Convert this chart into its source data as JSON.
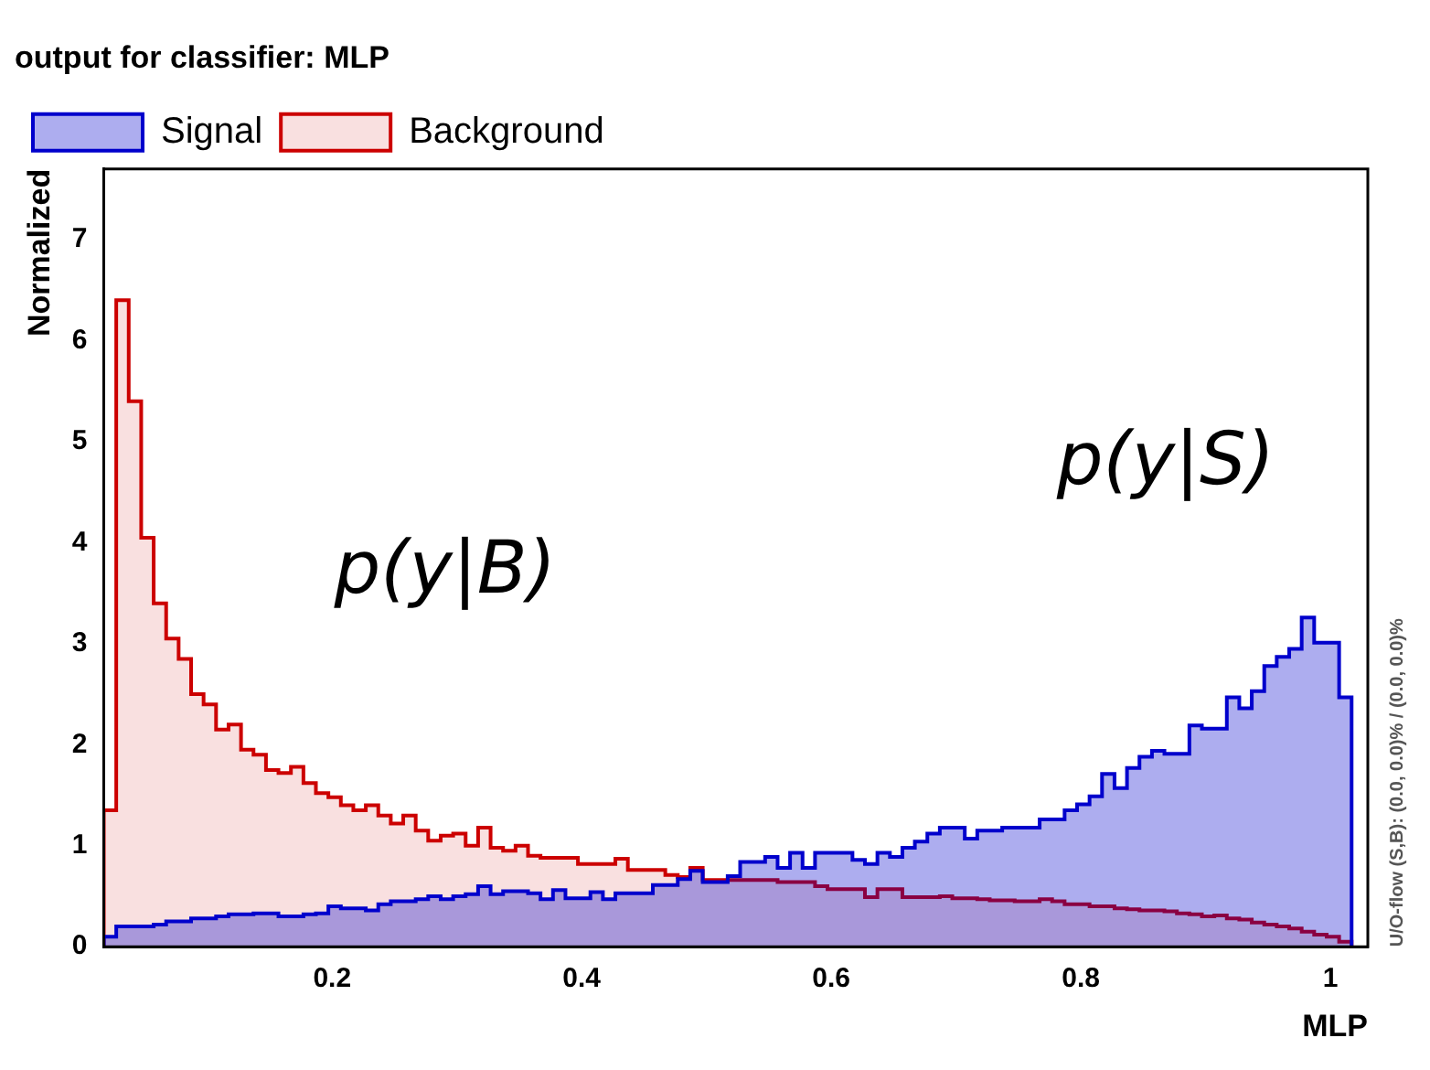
{
  "chart_data": {
    "type": "histogram",
    "title": "output for classifier: MLP",
    "xlabel": "MLP",
    "ylabel": "Normalized",
    "bins": [
      0.017,
      0.027,
      0.037,
      0.047,
      0.057,
      0.067,
      0.077,
      0.087,
      0.097,
      0.107,
      0.117,
      0.127,
      0.137,
      0.147,
      0.157,
      0.167,
      0.177,
      0.187,
      0.197,
      0.207,
      0.217,
      0.227,
      0.237,
      0.247,
      0.257,
      0.267,
      0.277,
      0.287,
      0.297,
      0.307,
      0.317,
      0.327,
      0.337,
      0.347,
      0.357,
      0.367,
      0.377,
      0.387,
      0.397,
      0.407,
      0.417,
      0.427,
      0.437,
      0.447,
      0.457,
      0.467,
      0.477,
      0.487,
      0.497,
      0.507,
      0.517,
      0.527,
      0.537,
      0.547,
      0.557,
      0.567,
      0.577,
      0.587,
      0.597,
      0.607,
      0.617,
      0.627,
      0.637,
      0.647,
      0.657,
      0.667,
      0.677,
      0.687,
      0.697,
      0.707,
      0.717,
      0.727,
      0.737,
      0.747,
      0.757,
      0.767,
      0.777,
      0.787,
      0.797,
      0.807,
      0.817,
      0.827,
      0.837,
      0.847,
      0.857,
      0.867,
      0.877,
      0.887,
      0.897,
      0.907,
      0.917,
      0.927,
      0.937,
      0.947,
      0.957,
      0.967,
      0.977,
      0.987,
      0.997,
      1.007,
      1.017
    ],
    "series": [
      {
        "name": "Signal",
        "color": "#0000cc",
        "values": [
          0.1,
          0.2,
          0.2,
          0.2,
          0.22,
          0.25,
          0.25,
          0.28,
          0.28,
          0.3,
          0.32,
          0.32,
          0.33,
          0.33,
          0.3,
          0.3,
          0.32,
          0.33,
          0.4,
          0.38,
          0.38,
          0.36,
          0.42,
          0.45,
          0.45,
          0.47,
          0.5,
          0.47,
          0.5,
          0.52,
          0.6,
          0.52,
          0.55,
          0.55,
          0.53,
          0.47,
          0.56,
          0.48,
          0.48,
          0.54,
          0.47,
          0.53,
          0.53,
          0.53,
          0.61,
          0.61,
          0.67,
          0.75,
          0.64,
          0.64,
          0.7,
          0.84,
          0.84,
          0.89,
          0.78,
          0.93,
          0.78,
          0.93,
          0.93,
          0.93,
          0.86,
          0.82,
          0.93,
          0.89,
          0.98,
          1.04,
          1.12,
          1.18,
          1.18,
          1.07,
          1.15,
          1.15,
          1.18,
          1.18,
          1.18,
          1.26,
          1.26,
          1.35,
          1.41,
          1.49,
          1.71,
          1.57,
          1.77,
          1.88,
          1.94,
          1.91,
          1.91,
          2.19,
          2.16,
          2.16,
          2.47,
          2.36,
          2.53,
          2.78,
          2.87,
          2.95,
          3.26,
          3.01,
          3.01,
          2.47
        ]
      },
      {
        "name": "Background",
        "color": "#cc0000",
        "values": [
          1.35,
          6.4,
          5.4,
          4.05,
          3.4,
          3.05,
          2.85,
          2.5,
          2.4,
          2.15,
          2.2,
          1.95,
          1.9,
          1.75,
          1.72,
          1.78,
          1.62,
          1.52,
          1.48,
          1.4,
          1.35,
          1.4,
          1.3,
          1.22,
          1.3,
          1.15,
          1.05,
          1.1,
          1.12,
          1.0,
          1.18,
          0.98,
          0.95,
          1.0,
          0.9,
          0.88,
          0.88,
          0.88,
          0.82,
          0.82,
          0.82,
          0.87,
          0.76,
          0.76,
          0.76,
          0.71,
          0.69,
          0.78,
          0.66,
          0.66,
          0.66,
          0.66,
          0.66,
          0.66,
          0.64,
          0.64,
          0.64,
          0.6,
          0.57,
          0.57,
          0.57,
          0.49,
          0.57,
          0.57,
          0.49,
          0.49,
          0.49,
          0.5,
          0.48,
          0.48,
          0.47,
          0.46,
          0.46,
          0.45,
          0.45,
          0.47,
          0.45,
          0.42,
          0.42,
          0.4,
          0.4,
          0.38,
          0.37,
          0.36,
          0.36,
          0.35,
          0.33,
          0.32,
          0.3,
          0.31,
          0.28,
          0.27,
          0.24,
          0.22,
          0.2,
          0.18,
          0.15,
          0.12,
          0.1,
          0.05
        ]
      }
    ],
    "xlim": [
      0.017,
      1.03
    ],
    "xticks": [
      0.2,
      0.4,
      0.6,
      0.8,
      1
    ],
    "ylim": [
      0,
      7.7
    ],
    "yticks": [
      0,
      1,
      2,
      3,
      4,
      5,
      6,
      7
    ],
    "grid": false,
    "legend": "top left",
    "annotations": [
      "p(y|B)",
      "p(y|S)",
      "U/O-flow (S,B): (0.0, 0.0)% / (0.0, 0.0)%"
    ]
  }
}
